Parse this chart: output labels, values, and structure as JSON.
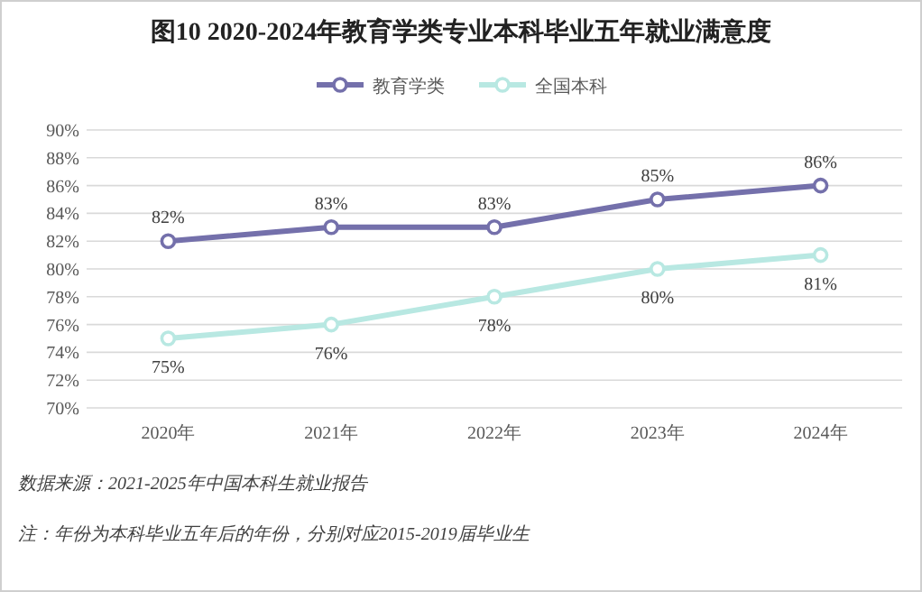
{
  "chart_data": {
    "type": "line",
    "title": "图10  2020-2024年教育学类专业本科毕业五年就业满意度",
    "categories": [
      "2020年",
      "2021年",
      "2022年",
      "2023年",
      "2024年"
    ],
    "series": [
      {
        "name": "教育学类",
        "color": "#7470ab",
        "values": [
          82,
          83,
          83,
          85,
          86
        ],
        "value_labels": [
          "82%",
          "83%",
          "83%",
          "85%",
          "86%"
        ]
      },
      {
        "name": "全国本科",
        "color": "#b8e8e2",
        "values": [
          75,
          76,
          78,
          80,
          81
        ],
        "value_labels": [
          "75%",
          "76%",
          "78%",
          "80%",
          "81%"
        ]
      }
    ],
    "ylim": [
      70,
      90
    ],
    "yticks": [
      {
        "value": 70,
        "label": "70%"
      },
      {
        "value": 72,
        "label": "72%"
      },
      {
        "value": 74,
        "label": "74%"
      },
      {
        "value": 76,
        "label": "76%"
      },
      {
        "value": 78,
        "label": "78%"
      },
      {
        "value": 80,
        "label": "80%"
      },
      {
        "value": 82,
        "label": "82%"
      },
      {
        "value": 84,
        "label": "84%"
      },
      {
        "value": 86,
        "label": "86%"
      },
      {
        "value": 88,
        "label": "88%"
      },
      {
        "value": 90,
        "label": "90%"
      }
    ],
    "grid": "y",
    "legend": "top",
    "marker": "circle",
    "line_style": "solid",
    "annotations": [
      "数据来源：2021-2025年中国本科生就业报告",
      "注：年份为本科毕业五年后的年份，分别对应2015-2019届毕业生"
    ]
  }
}
